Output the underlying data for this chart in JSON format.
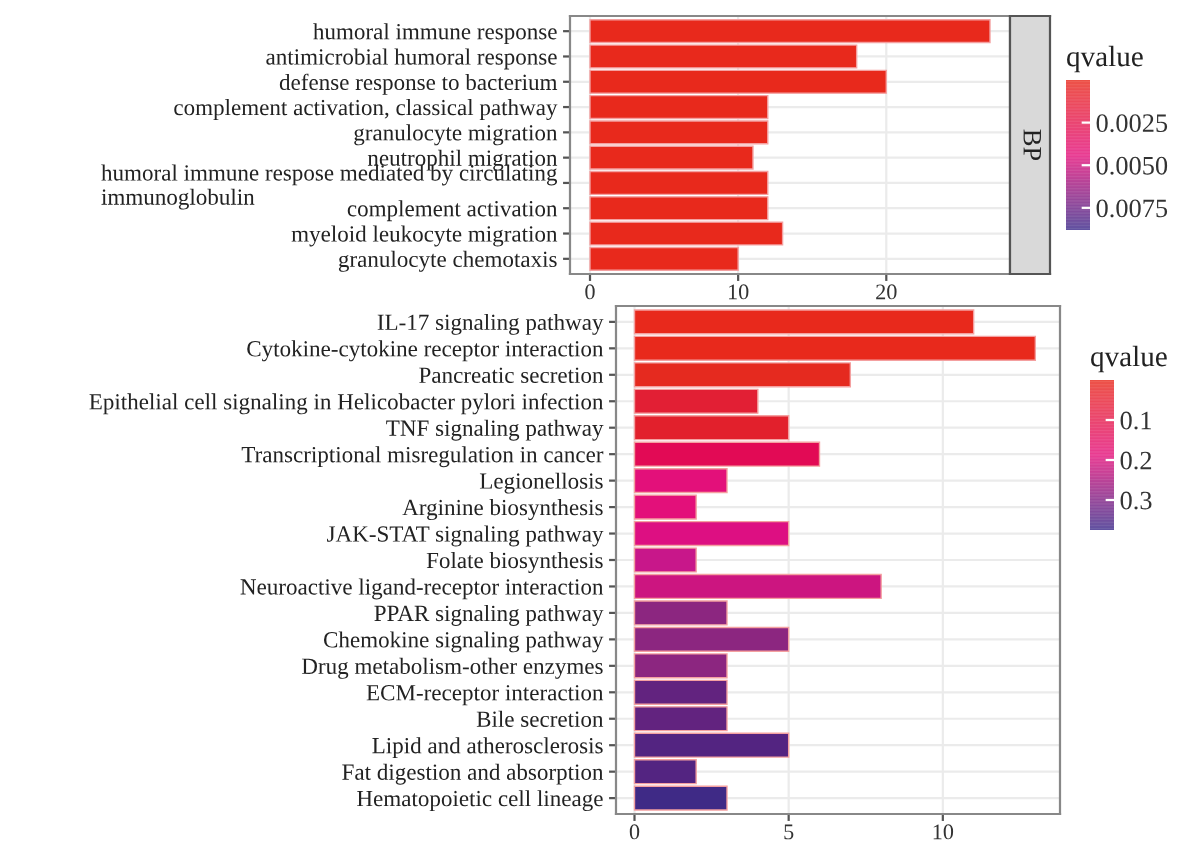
{
  "chart_data": [
    {
      "type": "bar",
      "orientation": "horizontal",
      "clabel": "qvalue",
      "annotations": [
        "BP"
      ],
      "categories": [
        "humoral immune response",
        "antimicrobial humoral response",
        "defense response to bacterium",
        "complement activation, classical pathway",
        "granulocyte migration",
        "neutrophil migration",
        "humoral immune respose mediated by circulating\nimmunoglobulin",
        "complement activation",
        "myeloid leukocyte migration",
        "granulocyte chemotaxis"
      ],
      "values": [
        27,
        18,
        20,
        12,
        12,
        11,
        12,
        12,
        13,
        10
      ],
      "colors": [
        "#e8291c",
        "#e8291c",
        "#e8291c",
        "#e8291c",
        "#e8291c",
        "#e8291c",
        "#e8291c",
        "#e8291c",
        "#e8291c",
        "#e8291c"
      ],
      "xlim": [
        -1.35,
        28.35
      ],
      "xticks": [
        0,
        10,
        20
      ],
      "clim": [
        0,
        0.0088
      ],
      "cticks": [
        {
          "value": 0.0025,
          "label": "0.0025"
        },
        {
          "value": 0.005,
          "label": "0.0050"
        },
        {
          "value": 0.0075,
          "label": "0.0075"
        }
      ],
      "grid": true
    },
    {
      "type": "bar",
      "orientation": "horizontal",
      "clabel": "qvalue",
      "categories": [
        "IL-17 signaling pathway",
        "Cytokine-cytokine receptor interaction",
        "Pancreatic secretion",
        "Epithelial cell signaling in Helicobacter pylori infection",
        "TNF signaling pathway",
        "Transcriptional misregulation in cancer",
        "Legionellosis",
        "Arginine biosynthesis",
        "JAK-STAT signaling pathway",
        "Folate biosynthesis",
        "Neuroactive ligand-receptor interaction",
        "PPAR signaling pathway",
        "Chemokine signaling pathway",
        "Drug metabolism-other enzymes",
        "ECM-receptor interaction",
        "Bile secretion",
        "Lipid and atherosclerosis",
        "Fat digestion and absorption",
        "Hematopoietic cell lineage"
      ],
      "values": [
        11,
        13,
        7,
        4,
        5,
        6,
        3,
        2,
        5,
        2,
        8,
        3,
        5,
        3,
        3,
        3,
        5,
        2,
        3
      ],
      "colors": [
        "#e8291c",
        "#e8291c",
        "#e52a1f",
        "#e21f34",
        "#e2202c",
        "#e20a55",
        "#e3107a",
        "#e3107a",
        "#dd0f82",
        "#c8178a",
        "#cc1580",
        "#8c2680",
        "#8c2680",
        "#8c2680",
        "#62237f",
        "#62237f",
        "#532481",
        "#532481",
        "#3f2a86"
      ],
      "xlim": [
        -0.6,
        13.8
      ],
      "xticks": [
        0,
        5,
        10
      ],
      "clim": [
        0,
        0.375
      ],
      "cticks": [
        0.1,
        0.2,
        0.3
      ],
      "grid": true
    }
  ]
}
